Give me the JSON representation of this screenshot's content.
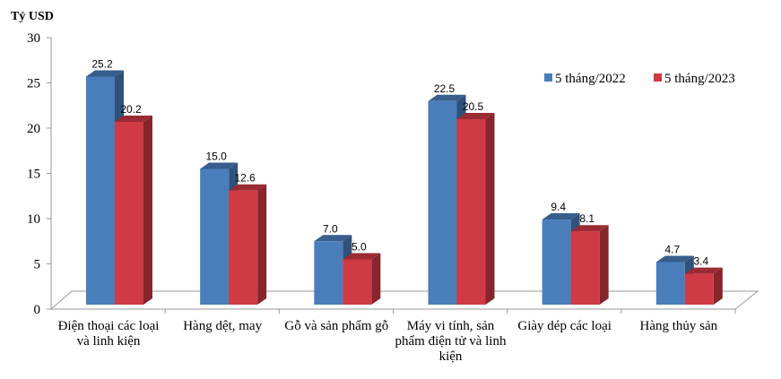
{
  "chart_data": {
    "type": "bar",
    "ylabel": "Tỷ USD",
    "ylim": [
      0,
      30
    ],
    "yticks": [
      0,
      5,
      10,
      15,
      20,
      25,
      30
    ],
    "categories": [
      "Điện thoại các loại và linh kiện",
      "Hàng dệt, may",
      "Gỗ và sản phẩm gỗ",
      "Máy vi tính, sản phẩm điện tử và linh kiện",
      "Giày dép các loại",
      "Hàng thủy sản"
    ],
    "series": [
      {
        "name": "5 tháng/2022",
        "color": "#4a7ebb",
        "values": [
          25.2,
          15.0,
          7.0,
          22.5,
          9.4,
          4.7
        ],
        "labels": [
          "25.2",
          "15.0",
          "7.0",
          "22.5",
          "9.4",
          "4.7"
        ]
      },
      {
        "name": "5 tháng/2023",
        "color": "#cf3a45",
        "values": [
          20.2,
          12.6,
          5.0,
          20.5,
          8.1,
          3.4
        ],
        "labels": [
          "20.2",
          "12.6",
          "5.0",
          "20.5",
          "8.1",
          "3.4"
        ]
      }
    ],
    "legend": "top-right"
  }
}
